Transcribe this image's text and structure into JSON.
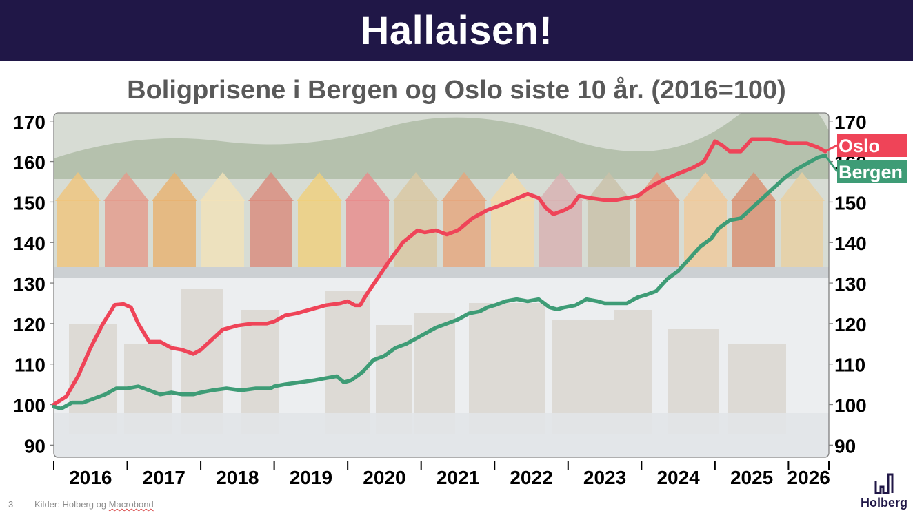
{
  "banner": {
    "title": "Hallaisen!"
  },
  "footer": {
    "page_number": "3",
    "source_prefix": "Kilder: Holberg og ",
    "source_name": "Macrobond"
  },
  "logo": {
    "text": "Holberg",
    "icon": "bar-chart-logo-icon"
  },
  "chart_data": {
    "type": "line",
    "title": "Boligprisene i Bergen og Oslo siste 10 år. (2016=100)",
    "ylim": [
      87,
      172
    ],
    "yticks": [
      90,
      100,
      110,
      120,
      130,
      140,
      150,
      160,
      170
    ],
    "xlim": [
      2016.0,
      2026.55
    ],
    "xticks": [
      "2016",
      "2017",
      "2018",
      "2019",
      "2020",
      "2021",
      "2022",
      "2023",
      "2024",
      "2025",
      "2026"
    ],
    "grid": false,
    "legend": "line-end labels, right",
    "series": [
      {
        "name": "Oslo",
        "color": "#ef4458",
        "x": [
          2016.0,
          2016.17,
          2016.33,
          2016.5,
          2016.67,
          2016.83,
          2016.95,
          2017.05,
          2017.15,
          2017.3,
          2017.45,
          2017.6,
          2017.75,
          2017.9,
          2018.0,
          2018.15,
          2018.3,
          2018.5,
          2018.7,
          2018.9,
          2019.0,
          2019.15,
          2019.3,
          2019.5,
          2019.7,
          2019.9,
          2020.0,
          2020.1,
          2020.17,
          2020.25,
          2020.4,
          2020.55,
          2020.75,
          2020.95,
          2021.05,
          2021.2,
          2021.35,
          2021.5,
          2021.7,
          2021.9,
          2022.05,
          2022.25,
          2022.45,
          2022.6,
          2022.7,
          2022.8,
          2022.95,
          2023.05,
          2023.15,
          2023.3,
          2023.5,
          2023.65,
          2023.8,
          2023.95,
          2024.1,
          2024.3,
          2024.5,
          2024.7,
          2024.85,
          2025.0,
          2025.1,
          2025.2,
          2025.35,
          2025.5,
          2025.6,
          2025.75,
          2025.9,
          2026.0,
          2026.1,
          2026.25,
          2026.4,
          2026.5
        ],
        "values": [
          100,
          102,
          107,
          114,
          120,
          124.6,
          124.8,
          124,
          120,
          115.5,
          115.5,
          114,
          113.5,
          112.5,
          113.5,
          116,
          118.5,
          119.5,
          120,
          120,
          120.5,
          122,
          122.5,
          123.5,
          124.5,
          125,
          125.5,
          124.5,
          124.5,
          127,
          131,
          135,
          140,
          143,
          142.5,
          143,
          142,
          143,
          146,
          148,
          149,
          150.5,
          152,
          151,
          148.5,
          147,
          148,
          149,
          151.5,
          151,
          150.5,
          150.5,
          151,
          151.5,
          153.5,
          155.5,
          157,
          158.5,
          160,
          165,
          164,
          162.5,
          162.5,
          165.5,
          165.5,
          165.5,
          165,
          164.5,
          164.5,
          164.5,
          163.5,
          162.5
        ]
      },
      {
        "name": "Bergen",
        "color": "#3e9c76",
        "x": [
          2016.0,
          2016.1,
          2016.25,
          2016.4,
          2016.55,
          2016.7,
          2016.85,
          2017.0,
          2017.15,
          2017.3,
          2017.45,
          2017.6,
          2017.75,
          2017.9,
          2018.0,
          2018.15,
          2018.35,
          2018.55,
          2018.75,
          2018.95,
          2019.0,
          2019.15,
          2019.35,
          2019.55,
          2019.7,
          2019.85,
          2019.95,
          2020.05,
          2020.2,
          2020.35,
          2020.5,
          2020.65,
          2020.8,
          2020.95,
          2021.05,
          2021.2,
          2021.35,
          2021.5,
          2021.65,
          2021.8,
          2021.9,
          2022.0,
          2022.15,
          2022.3,
          2022.45,
          2022.6,
          2022.75,
          2022.85,
          2022.95,
          2023.1,
          2023.25,
          2023.4,
          2023.5,
          2023.65,
          2023.8,
          2023.95,
          2024.05,
          2024.2,
          2024.35,
          2024.5,
          2024.65,
          2024.8,
          2024.95,
          2025.05,
          2025.2,
          2025.35,
          2025.5,
          2025.65,
          2025.8,
          2025.95,
          2026.1,
          2026.25,
          2026.4,
          2026.5
        ],
        "values": [
          99.5,
          99,
          100.5,
          100.5,
          101.5,
          102.5,
          104,
          104,
          104.5,
          103.5,
          102.5,
          103,
          102.5,
          102.5,
          103,
          103.5,
          104,
          103.5,
          104,
          104,
          104.5,
          105,
          105.5,
          106,
          106.5,
          107,
          105.5,
          106,
          108,
          111,
          112,
          114,
          115,
          116.5,
          117.5,
          119,
          120,
          121,
          122.5,
          123,
          124,
          124.5,
          125.5,
          126,
          125.5,
          126,
          124,
          123.5,
          124,
          124.5,
          126,
          125.5,
          125,
          125,
          125,
          126.5,
          127,
          128,
          131,
          133,
          136,
          139,
          141,
          143.5,
          145.5,
          146,
          148.5,
          151,
          153.5,
          156,
          158,
          159.5,
          161,
          161.5
        ]
      }
    ]
  }
}
